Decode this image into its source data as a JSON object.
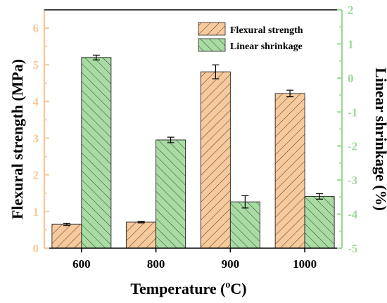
{
  "chart_data": {
    "type": "bar",
    "categories": [
      "600",
      "800",
      "900",
      "1000"
    ],
    "xlabel": "Temperature (",
    "xlabel_sup": "o",
    "xlabel_end": "C)",
    "series": [
      {
        "name": "Flexural strength",
        "axis": "left",
        "values": [
          0.65,
          0.71,
          4.81,
          4.22
        ],
        "errors": [
          0.03,
          0.02,
          0.19,
          0.09
        ],
        "color": "#f7c99b",
        "hatch": "forward"
      },
      {
        "name": "Linear shrinkage",
        "axis": "right",
        "values": [
          0.6,
          -1.82,
          -3.64,
          -3.48
        ],
        "errors": [
          0.07,
          0.08,
          0.18,
          0.08
        ],
        "color": "#a8dca3",
        "hatch": "backward"
      }
    ],
    "left_axis": {
      "label": "Flexural strength (MPa)",
      "ylim": [
        0,
        6.5
      ],
      "ticks": [
        "0",
        "1",
        "2",
        "3",
        "4",
        "5",
        "6"
      ],
      "color": "#f5c99a"
    },
    "right_axis": {
      "label": "Linear shrinkage (%)",
      "ylim": [
        -5,
        2
      ],
      "ticks": [
        "-5",
        "-4",
        "-3",
        "-2",
        "-1",
        "0",
        "1",
        "2"
      ],
      "color": "#9fd89a"
    },
    "legend_placement": "top-right",
    "grid": false
  }
}
